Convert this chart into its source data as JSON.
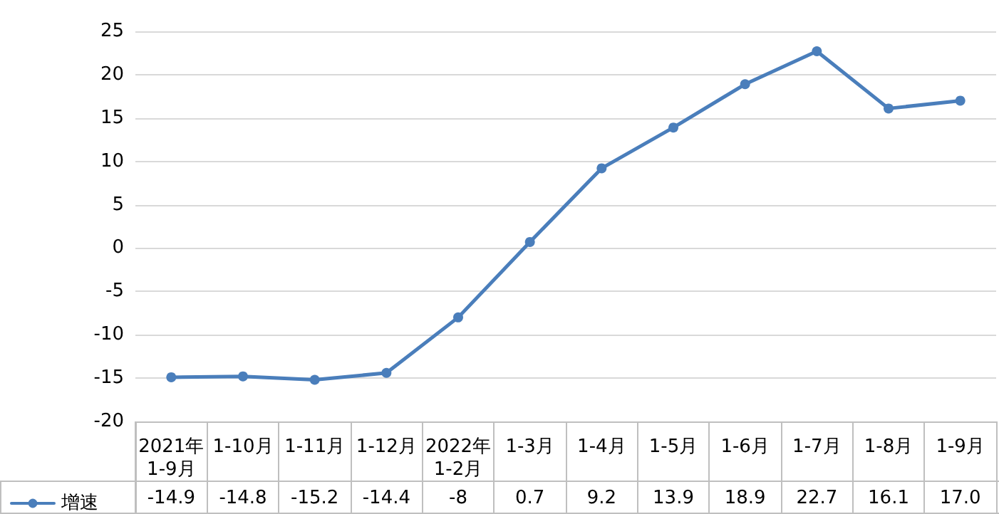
{
  "chart_data": {
    "type": "line",
    "categories": [
      "2021年\n1-9月",
      "1-10月",
      "1-11月",
      "1-12月",
      "2022年\n1-2月",
      "1-3月",
      "1-4月",
      "1-5月",
      "1-6月",
      "1-7月",
      "1-8月",
      "1-9月"
    ],
    "series": [
      {
        "name": "增速",
        "color": "#4a7ebb",
        "values": [
          -14.9,
          -14.8,
          -15.2,
          -14.4,
          -8,
          0.7,
          9.2,
          13.9,
          18.9,
          22.7,
          16.1,
          17.0
        ],
        "value_labels": [
          "-14.9",
          "-14.8",
          "-15.2",
          "-14.4",
          "-8",
          "0.7",
          "9.2",
          "13.9",
          "18.9",
          "22.7",
          "16.1",
          "17.0"
        ]
      }
    ],
    "ylim": [
      -20,
      25
    ],
    "yticks": [
      -20,
      -15,
      -10,
      -5,
      0,
      5,
      10,
      15,
      20,
      25
    ],
    "grid": "y",
    "legend": "bottom left",
    "marker": "circle",
    "line_style": "solid",
    "data_labels": true
  }
}
